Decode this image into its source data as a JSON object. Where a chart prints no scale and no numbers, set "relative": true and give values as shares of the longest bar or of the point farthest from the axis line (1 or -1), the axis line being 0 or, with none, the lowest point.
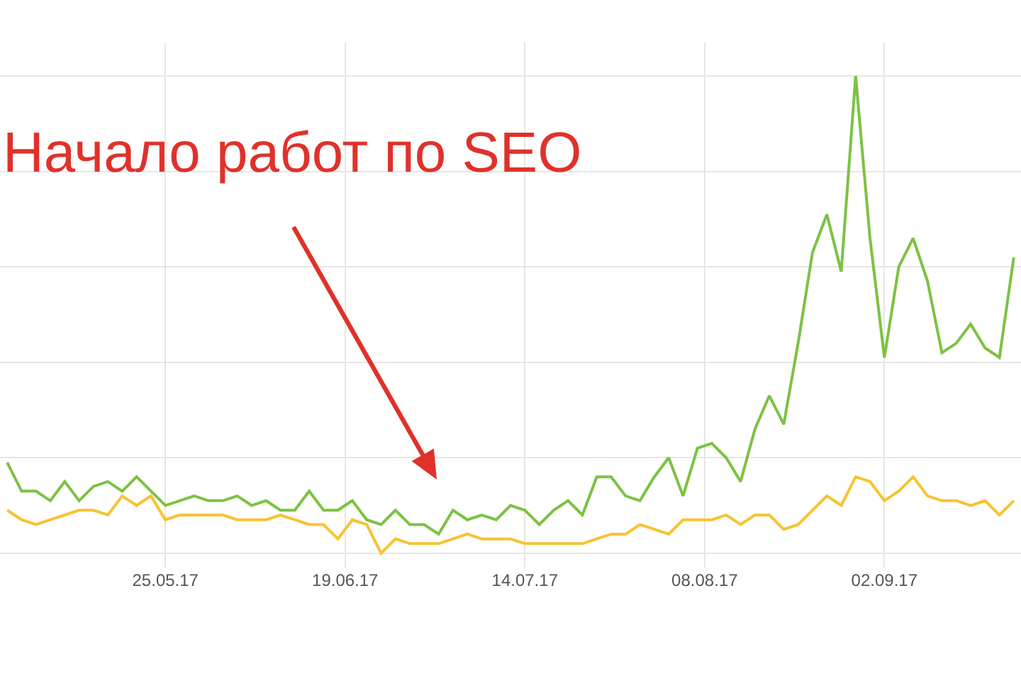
{
  "chart_data": {
    "type": "line",
    "relative": true,
    "grid": true,
    "marker": "none",
    "line_style": "solid",
    "x": [
      "2017-05-03",
      "2017-05-05",
      "2017-05-07",
      "2017-05-09",
      "2017-05-11",
      "2017-05-13",
      "2017-05-15",
      "2017-05-17",
      "2017-05-19",
      "2017-05-21",
      "2017-05-23",
      "2017-05-25",
      "2017-05-27",
      "2017-05-29",
      "2017-05-31",
      "2017-06-02",
      "2017-06-04",
      "2017-06-06",
      "2017-06-08",
      "2017-06-10",
      "2017-06-12",
      "2017-06-14",
      "2017-06-16",
      "2017-06-18",
      "2017-06-20",
      "2017-06-22",
      "2017-06-24",
      "2017-06-26",
      "2017-06-28",
      "2017-06-30",
      "2017-07-02",
      "2017-07-04",
      "2017-07-06",
      "2017-07-08",
      "2017-07-10",
      "2017-07-12",
      "2017-07-14",
      "2017-07-16",
      "2017-07-18",
      "2017-07-20",
      "2017-07-22",
      "2017-07-24",
      "2017-07-26",
      "2017-07-28",
      "2017-07-30",
      "2017-08-01",
      "2017-08-03",
      "2017-08-05",
      "2017-08-07",
      "2017-08-09",
      "2017-08-11",
      "2017-08-13",
      "2017-08-15",
      "2017-08-17",
      "2017-08-19",
      "2017-08-21",
      "2017-08-23",
      "2017-08-25",
      "2017-08-27",
      "2017-08-29",
      "2017-08-31",
      "2017-09-02",
      "2017-09-04",
      "2017-09-06",
      "2017-09-08",
      "2017-09-10",
      "2017-09-12",
      "2017-09-14",
      "2017-09-16",
      "2017-09-18",
      "2017-09-20"
    ],
    "xlim": [
      "2017-05-02",
      "2017-09-21"
    ],
    "xticks": [
      {
        "value": "2017-05-25",
        "label": "25.05.17"
      },
      {
        "value": "2017-06-19",
        "label": "19.06.17"
      },
      {
        "value": "2017-07-14",
        "label": "14.07.17"
      },
      {
        "value": "2017-08-08",
        "label": "08.08.17"
      },
      {
        "value": "2017-09-02",
        "label": "02.09.17"
      }
    ],
    "series": [
      {
        "color": "#7dc243",
        "values": [
          0.19,
          0.13,
          0.13,
          0.11,
          0.15,
          0.11,
          0.14,
          0.15,
          0.13,
          0.16,
          0.13,
          0.1,
          0.11,
          0.12,
          0.11,
          0.11,
          0.12,
          0.1,
          0.11,
          0.09,
          0.09,
          0.13,
          0.09,
          0.09,
          0.11,
          0.07,
          0.06,
          0.09,
          0.06,
          0.06,
          0.04,
          0.09,
          0.07,
          0.08,
          0.07,
          0.1,
          0.09,
          0.06,
          0.09,
          0.11,
          0.08,
          0.16,
          0.16,
          0.12,
          0.11,
          0.16,
          0.2,
          0.12,
          0.22,
          0.23,
          0.2,
          0.15,
          0.26,
          0.33,
          0.27,
          0.44,
          0.63,
          0.71,
          0.59,
          1,
          0.66,
          0.41,
          0.6,
          0.66,
          0.57,
          0.42,
          0.44,
          0.48,
          0.43,
          0.41,
          0.62
        ]
      },
      {
        "color": "#f7c331",
        "values": [
          0.09,
          0.07,
          0.06,
          0.07,
          0.08,
          0.09,
          0.09,
          0.08,
          0.12,
          0.1,
          0.12,
          0.07,
          0.08,
          0.08,
          0.08,
          0.08,
          0.07,
          0.07,
          0.07,
          0.08,
          0.07,
          0.06,
          0.06,
          0.03,
          0.07,
          0.06,
          0,
          0.03,
          0.02,
          0.02,
          0.02,
          0.03,
          0.04,
          0.03,
          0.03,
          0.03,
          0.02,
          0.02,
          0.02,
          0.02,
          0.02,
          0.03,
          0.04,
          0.04,
          0.06,
          0.05,
          0.04,
          0.07,
          0.07,
          0.07,
          0.08,
          0.06,
          0.08,
          0.08,
          0.05,
          0.06,
          0.09,
          0.12,
          0.1,
          0.16,
          0.15,
          0.11,
          0.13,
          0.16,
          0.12,
          0.11,
          0.11,
          0.1,
          0.11,
          0.08,
          0.11
        ]
      }
    ],
    "annotations": [
      "Начало работ по SEO"
    ]
  }
}
